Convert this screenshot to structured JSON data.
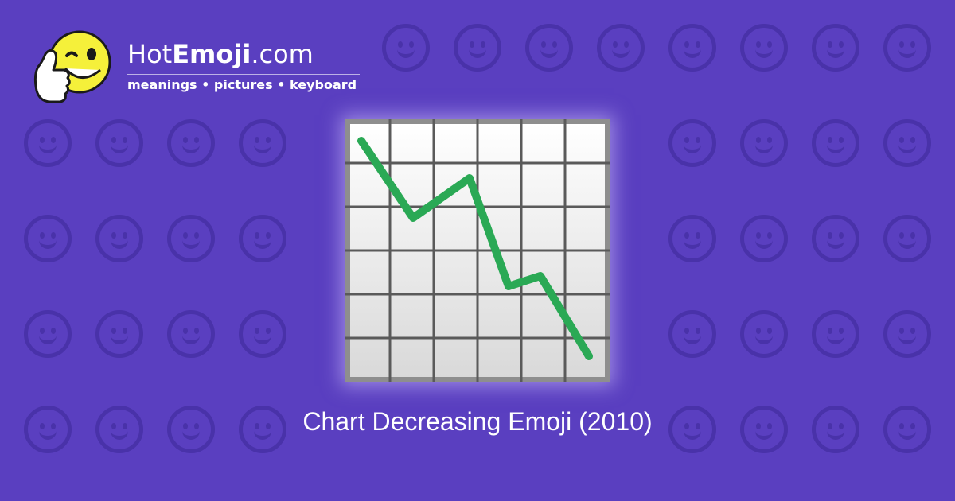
{
  "brand": {
    "name_prefix": "Hot",
    "name_bold": "Emoji",
    "name_suffix": ".com",
    "tagline": "meanings • pictures • keyboard",
    "mascot_icon": "winking-thumbs-up-face-icon"
  },
  "emoji": {
    "icon": "chart-decreasing-icon",
    "line_color": "#2aa955"
  },
  "caption": "Chart Decreasing Emoji (2010)",
  "colors": {
    "background": "#5a3fc0",
    "text": "#ffffff"
  }
}
